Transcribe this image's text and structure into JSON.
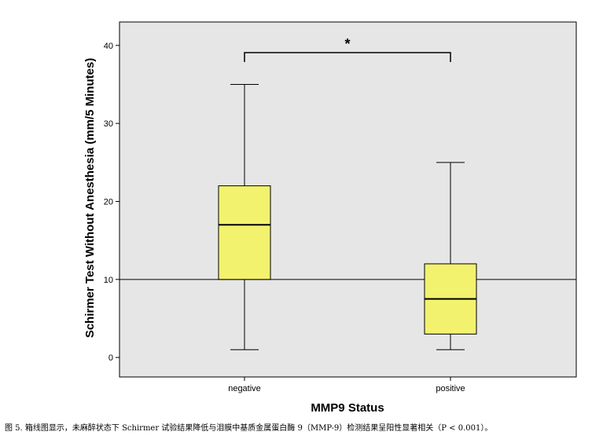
{
  "chart_data": {
    "type": "box",
    "title": "",
    "xlabel": "MMP9 Status",
    "ylabel": "Schirmer Test Without Anesthesia (mm/5 Minutes)",
    "ylim": [
      -2.5,
      43
    ],
    "yticks": [
      0,
      10,
      20,
      30,
      40
    ],
    "reference_line": 10,
    "significance_marker": "*",
    "grid": false,
    "box_color": "#f2f26e",
    "plot_background": "#e6e6e6",
    "categories": [
      "negative",
      "positive"
    ],
    "boxes": [
      {
        "category": "negative",
        "min": 1,
        "q1": 10,
        "median": 17,
        "q3": 22,
        "max": 35
      },
      {
        "category": "positive",
        "min": 1,
        "q1": 3,
        "median": 7.5,
        "q3": 12,
        "max": 25
      }
    ]
  },
  "caption": "图 5. 箱线图显示，未麻醉状态下 Schirmer 试验结果降低与泪膜中基质金属蛋白酶 9（MMP-9）检测结果呈阳性显著相关（P < 0.001）。"
}
